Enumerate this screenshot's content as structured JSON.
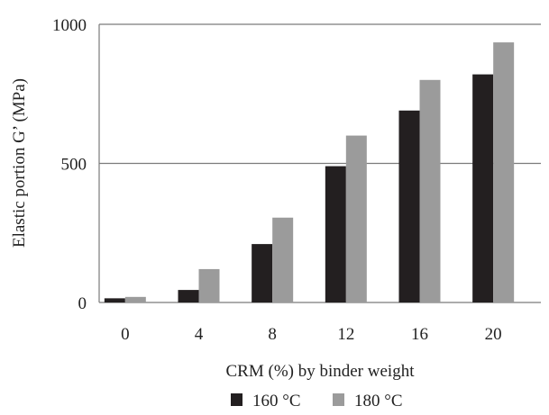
{
  "chart_data": {
    "type": "bar",
    "categories": [
      "0",
      "4",
      "8",
      "12",
      "16",
      "20"
    ],
    "series": [
      {
        "name": "160 °C",
        "values": [
          15,
          45,
          210,
          490,
          690,
          820
        ],
        "color": "#231f20"
      },
      {
        "name": "180 °C",
        "values": [
          20,
          120,
          305,
          600,
          800,
          935
        ],
        "color": "#9b9b9b"
      }
    ],
    "xlabel": "CRM (%) by binder weight",
    "ylabel": "Elastic portion G’ (MPa)",
    "ylim": [
      0,
      1000
    ],
    "yticks": [
      "0",
      "500",
      "1000"
    ],
    "grid": "horizontal",
    "legend": "bottom"
  }
}
